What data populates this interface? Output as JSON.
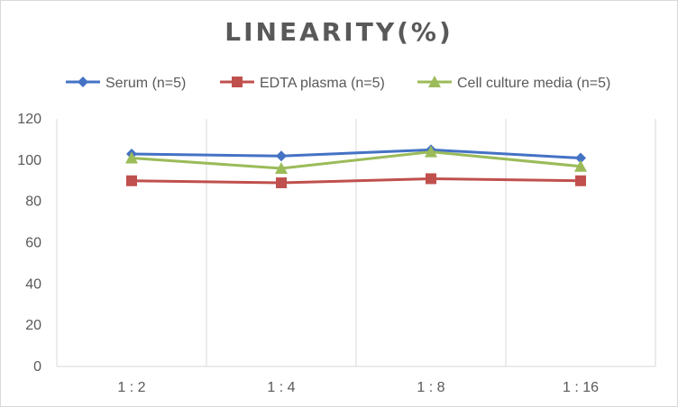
{
  "chart_data": {
    "type": "line",
    "title": "LINEARITY(%)",
    "categories": [
      "1:2",
      "1:4",
      "1:8",
      "1:16"
    ],
    "ylim": [
      0,
      120
    ],
    "yticks": [
      0,
      20,
      40,
      60,
      80,
      100,
      120
    ],
    "grid": "vertical",
    "legend_position": "top",
    "series": [
      {
        "name": "Serum (n=5)",
        "values": [
          103,
          102,
          105,
          101
        ],
        "color": "#4472c4",
        "marker": "diamond"
      },
      {
        "name": "EDTA plasma (n=5)",
        "values": [
          90,
          89,
          91,
          90
        ],
        "color": "#c0504d",
        "marker": "square"
      },
      {
        "name": "Cell culture media (n=5)",
        "values": [
          101,
          96,
          104,
          97
        ],
        "color": "#9bbb59",
        "marker": "triangle"
      }
    ]
  }
}
